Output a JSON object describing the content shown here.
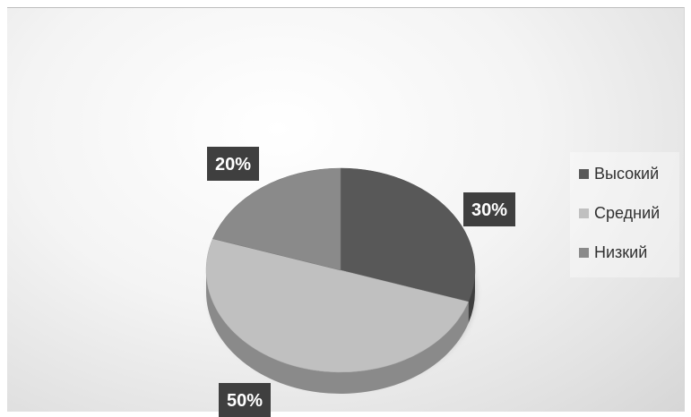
{
  "colors": {
    "series": [
      "#585858",
      "#c0c0c0",
      "#8a8a8a"
    ],
    "label_bg": "#3f3f3f"
  },
  "chart_data": {
    "type": "pie",
    "title": "",
    "categories": [
      "Высокий",
      "Средний",
      "Низкий"
    ],
    "values": [
      30,
      50,
      20
    ],
    "data_labels": [
      "30%",
      "50%",
      "20%"
    ],
    "legend": {
      "position": "right",
      "entries": [
        "Высокий",
        "Средний",
        "Низкий"
      ]
    }
  }
}
